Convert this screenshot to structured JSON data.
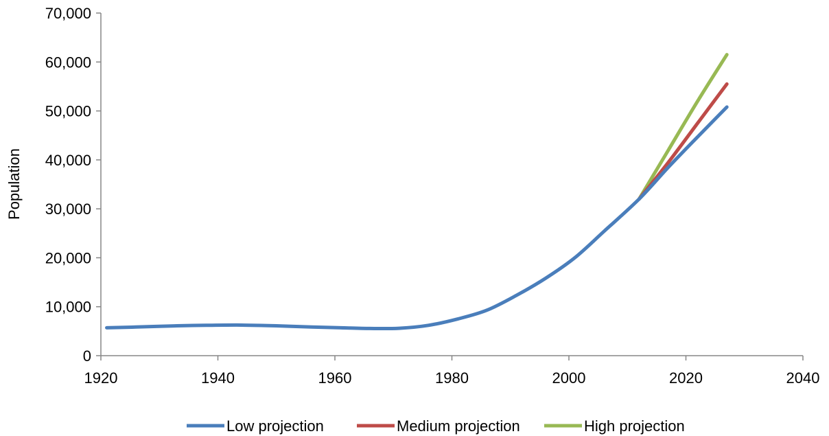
{
  "chart_data": {
    "type": "line",
    "title": "",
    "xlabel": "",
    "ylabel": "Population",
    "xlim": [
      1920,
      2040
    ],
    "ylim": [
      0,
      70000
    ],
    "x_ticks": [
      1920,
      1940,
      1960,
      1980,
      2000,
      2020,
      2040
    ],
    "x_tick_labels": [
      "1920",
      "1940",
      "1960",
      "1980",
      "2000",
      "2020",
      "2040"
    ],
    "y_ticks": [
      0,
      10000,
      20000,
      30000,
      40000,
      50000,
      60000,
      70000
    ],
    "y_tick_labels": [
      "0",
      "10,000",
      "20,000",
      "30,000",
      "40,000",
      "50,000",
      "60,000",
      "70,000"
    ],
    "grid": false,
    "legend_position": "bottom",
    "series": [
      {
        "name": "Low projection",
        "color": "#4a7ebb",
        "points": [
          [
            1921,
            5700
          ],
          [
            1926,
            5850
          ],
          [
            1933,
            6100
          ],
          [
            1938,
            6200
          ],
          [
            1944,
            6250
          ],
          [
            1950,
            6100
          ],
          [
            1956,
            5850
          ],
          [
            1961,
            5700
          ],
          [
            1966,
            5550
          ],
          [
            1971,
            5600
          ],
          [
            1976,
            6200
          ],
          [
            1981,
            7500
          ],
          [
            1986,
            9300
          ],
          [
            1991,
            12300
          ],
          [
            1996,
            15800
          ],
          [
            2001,
            20000
          ],
          [
            2006,
            25400
          ],
          [
            2012,
            32000
          ],
          [
            2017,
            38500
          ],
          [
            2022,
            44700
          ],
          [
            2027,
            50800
          ]
        ]
      },
      {
        "name": "Medium projection",
        "color": "#be4b48",
        "points": [
          [
            2012,
            32000
          ],
          [
            2017,
            39500
          ],
          [
            2022,
            47500
          ],
          [
            2027,
            55500
          ]
        ]
      },
      {
        "name": "High projection",
        "color": "#98b954",
        "points": [
          [
            2012,
            32000
          ],
          [
            2017,
            42000
          ],
          [
            2022,
            52000
          ],
          [
            2027,
            61500
          ]
        ]
      }
    ]
  }
}
